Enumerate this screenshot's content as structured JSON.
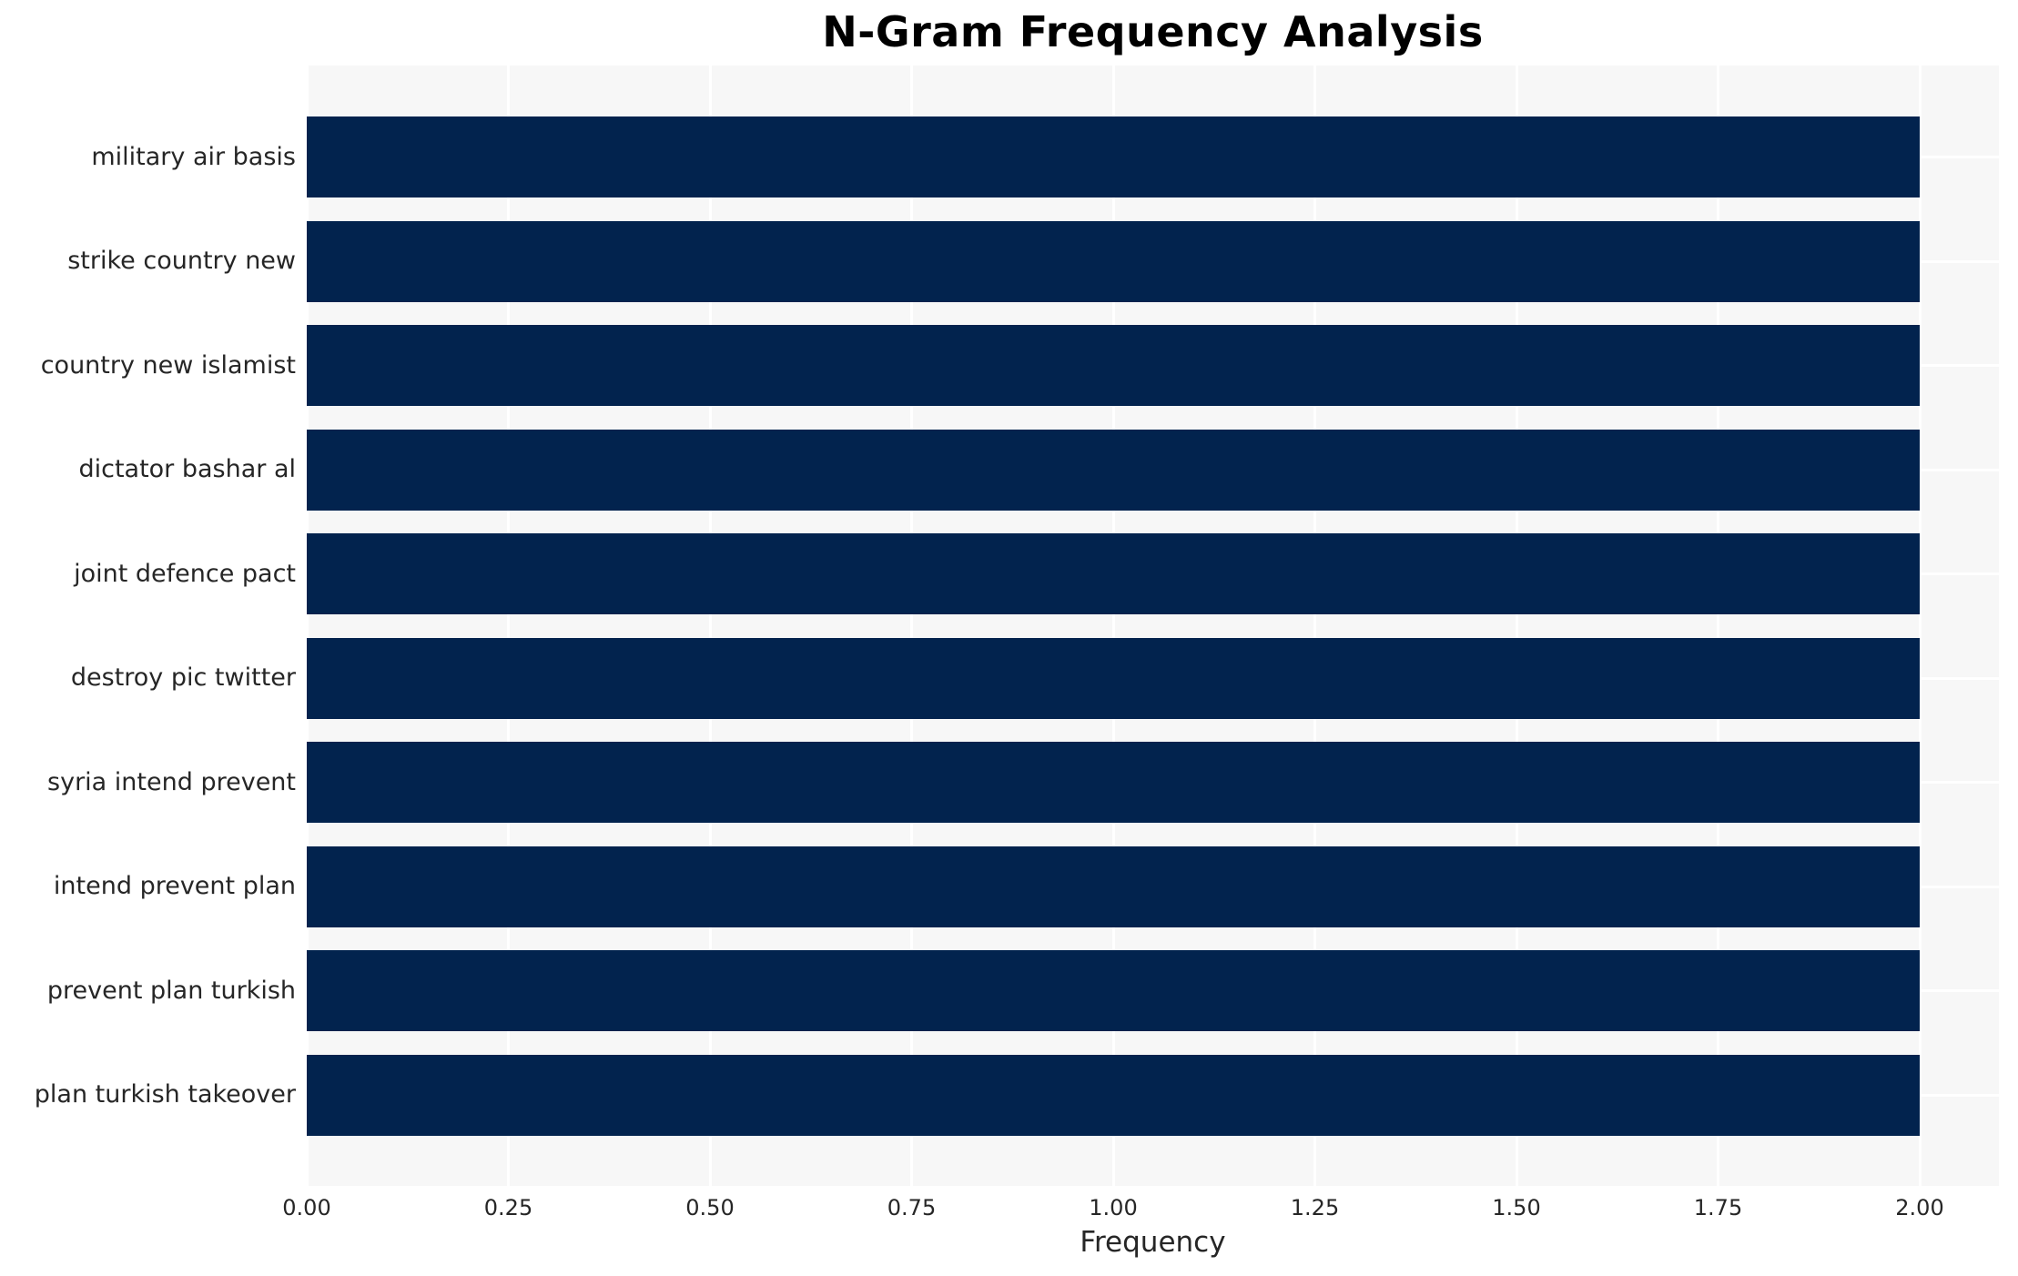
{
  "title": "N-Gram Frequency Analysis",
  "chart_data": {
    "type": "bar",
    "orientation": "horizontal",
    "title": "N-Gram Frequency Analysis",
    "categories": [
      "military air basis",
      "strike country new",
      "country new islamist",
      "dictator bashar al",
      "joint defence pact",
      "destroy pic twitter",
      "syria intend prevent",
      "intend prevent plan",
      "prevent plan turkish",
      "plan turkish takeover"
    ],
    "values": [
      2,
      2,
      2,
      2,
      2,
      2,
      2,
      2,
      2,
      2
    ],
    "xlabel": "Frequency",
    "ylabel": "",
    "xlim": [
      0,
      2.1
    ],
    "xticks": [
      "0.00",
      "0.25",
      "0.50",
      "0.75",
      "1.00",
      "1.25",
      "1.50",
      "1.75",
      "2.00"
    ],
    "xtick_values": [
      0,
      0.25,
      0.5,
      0.75,
      1.0,
      1.25,
      1.5,
      1.75,
      2.0
    ],
    "grid": true,
    "legend": false,
    "colors": {
      "bar": "#02234e",
      "plot_background": "#f7f7f7",
      "figure_background": "#ffffff",
      "gridline": "#ffffff",
      "tick_text": "#262626",
      "title_text": "#000000"
    }
  }
}
